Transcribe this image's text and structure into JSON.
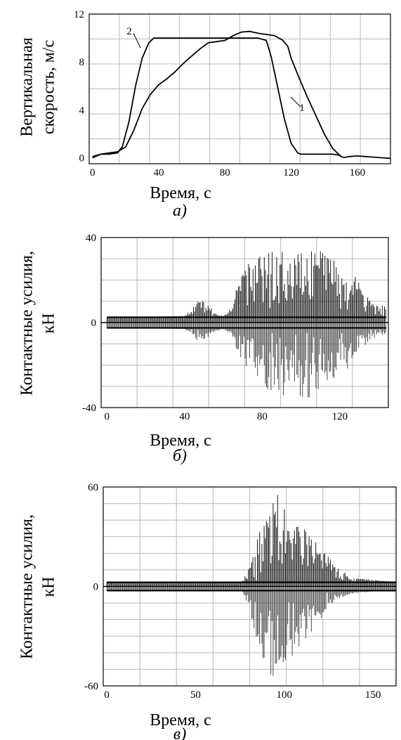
{
  "chart_data": [
    {
      "type": "line",
      "panel_label": "а)",
      "xlabel": "Время, с",
      "ylabel": [
        "Вертикальная",
        "скорость, м/с"
      ],
      "xlim": [
        -2,
        180
      ],
      "ylim": [
        -0.5,
        12
      ],
      "x_ticks": [
        0,
        40,
        80,
        120,
        160
      ],
      "y_ticks": [
        0,
        4,
        8,
        12
      ],
      "grid": true,
      "series": [
        {
          "name": "1",
          "x": [
            0,
            5,
            10,
            15,
            20,
            25,
            30,
            35,
            40,
            45,
            50,
            55,
            60,
            65,
            70,
            75,
            80,
            85,
            90,
            95,
            100,
            105,
            110,
            115,
            118,
            120,
            125,
            130,
            135,
            140,
            145,
            150,
            152,
            155,
            160,
            165,
            170,
            175,
            180
          ],
          "y": [
            0,
            0.3,
            0.4,
            0.5,
            0.9,
            2.3,
            4.1,
            5.3,
            6.1,
            6.6,
            7.2,
            7.9,
            8.5,
            9.1,
            9.6,
            9.7,
            9.8,
            10.2,
            10.5,
            10.55,
            10.4,
            10.3,
            10.2,
            9.8,
            9.3,
            8.3,
            6.6,
            5.0,
            3.5,
            2.0,
            0.8,
            0.1,
            0.02,
            0.1,
            0.15,
            0.1,
            0.05,
            0.0,
            -0.05
          ]
        },
        {
          "name": "2",
          "x": [
            0,
            5,
            10,
            15,
            18,
            22,
            26,
            30,
            34,
            37,
            40,
            50,
            60,
            70,
            80,
            90,
            100,
            105,
            108,
            112,
            116,
            120,
            124,
            126,
            130,
            140,
            145,
            150
          ],
          "y": [
            0.1,
            0.3,
            0.3,
            0.4,
            0.9,
            3.0,
            6.0,
            8.3,
            9.6,
            10.0,
            10.0,
            10.0,
            10.0,
            10.0,
            10.0,
            10.0,
            10.0,
            9.8,
            8.4,
            5.8,
            3.2,
            1.2,
            0.4,
            0.3,
            0.3,
            0.3,
            0.3,
            0.2
          ]
        }
      ]
    },
    {
      "type": "line",
      "panel_label": "б)",
      "xlabel": "Время, с",
      "ylabel": [
        "Контактные усилия,",
        "кН"
      ],
      "xlim": [
        -3,
        145
      ],
      "ylim": [
        -40,
        40
      ],
      "x_ticks": [
        0,
        40,
        80,
        120
      ],
      "y_ticks": [
        -40,
        0,
        40
      ],
      "grid": true,
      "series": [
        {
          "x": [
            0,
            40,
            44,
            48,
            52,
            56,
            60,
            64,
            68,
            72,
            76,
            80,
            84,
            88,
            92,
            96,
            100,
            104,
            108,
            112,
            116,
            120,
            124,
            128,
            132,
            136,
            140,
            144
          ],
          "upper": [
            2.5,
            3,
            7,
            12,
            9,
            4,
            3,
            7,
            22,
            27,
            30,
            34,
            34,
            38,
            33,
            31,
            33,
            35,
            36,
            34,
            31,
            27,
            24,
            22,
            15,
            10,
            8,
            8
          ],
          "lower": [
            -2.5,
            -3,
            -6,
            -10,
            -7,
            -4,
            -3,
            -6,
            -16,
            -22,
            -28,
            -30,
            -33,
            -36,
            -34,
            -35,
            -36,
            -37,
            -34,
            -31,
            -29,
            -25,
            -22,
            -17,
            -12,
            -8,
            -6,
            -6
          ]
        }
      ]
    },
    {
      "type": "line",
      "panel_label": "в)",
      "xlabel": "Время, с",
      "ylabel": [
        "Контактные усилия,",
        "кН"
      ],
      "xlim": [
        -2,
        163
      ],
      "ylim": [
        -60,
        60
      ],
      "x_ticks": [
        0,
        50,
        100,
        150
      ],
      "y_ticks": [
        -60,
        0,
        60
      ],
      "grid": true,
      "series": [
        {
          "x": [
            0,
            76,
            80,
            84,
            88,
            92,
            96,
            100,
            104,
            108,
            112,
            116,
            120,
            124,
            128,
            132,
            136,
            140,
            150,
            160,
            163
          ],
          "upper": [
            2.5,
            2.5,
            11,
            28,
            38,
            52,
            56,
            55,
            44,
            40,
            36,
            30,
            25,
            19,
            14,
            10,
            7,
            5,
            4,
            3,
            3
          ],
          "lower": [
            -2.5,
            -2.5,
            -12,
            -30,
            -47,
            -57,
            -56,
            -52,
            -46,
            -40,
            -33,
            -27,
            -22,
            -15,
            -10,
            -7,
            -5,
            -4,
            -3,
            -3,
            -3
          ]
        }
      ]
    }
  ]
}
